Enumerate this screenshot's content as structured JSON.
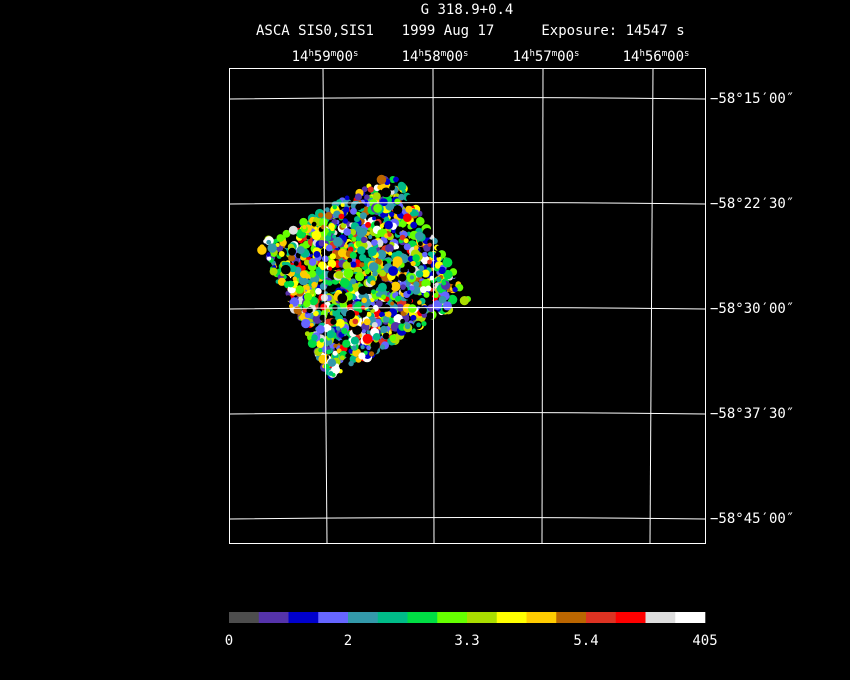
{
  "header": {
    "title": "G 318.9+0.4",
    "instrument": "ASCA SIS0,SIS1",
    "date": "1999 Aug 17",
    "exposure": "Exposure: 14547 s"
  },
  "ra_labels": [
    "14h59m00s",
    "14h58m00s",
    "14h57m00s",
    "14h56m00s"
  ],
  "dec_labels": [
    "−58°15′00″",
    "−58°22′30″",
    "−58°30′00″",
    "−58°37′30″",
    "−58°45′00″"
  ],
  "colorbar": {
    "colors": [
      "#4d4d4d",
      "#5533aa",
      "#0000cc",
      "#6666ff",
      "#3399aa",
      "#00bb88",
      "#00dd44",
      "#66ff00",
      "#aadd00",
      "#ffff00",
      "#ffcc00",
      "#bb6600",
      "#dd3322",
      "#ff0000",
      "#dddddd",
      "#ffffff"
    ],
    "labels": [
      "0",
      "2",
      "3.3",
      "5.4",
      "405"
    ]
  }
}
